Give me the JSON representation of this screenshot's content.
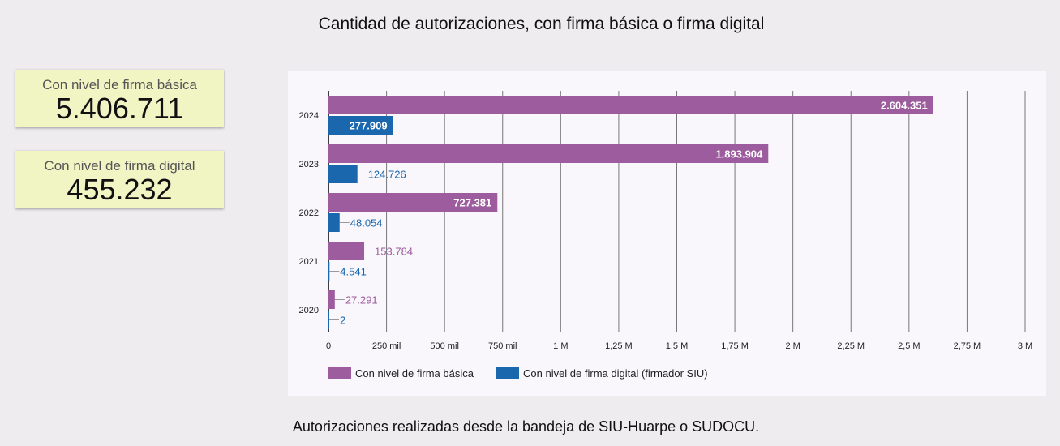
{
  "title": "Cantidad de autorizaciones, con firma básica o firma digital",
  "kpis": [
    {
      "label": "Con nivel de firma básica",
      "value": "5.406.711"
    },
    {
      "label": "Con nivel de firma digital",
      "value": "455.232"
    }
  ],
  "footer": "Autorizaciones realizadas desde la bandeja de SIU-Huarpe o SUDOCU.",
  "chart_data": {
    "type": "bar",
    "orientation": "horizontal",
    "categories": [
      "2024",
      "2023",
      "2022",
      "2021",
      "2020"
    ],
    "series": [
      {
        "name": "Con nivel de firma básica",
        "color": "#9c5c9e",
        "values": [
          2604351,
          1893904,
          727381,
          153784,
          27291
        ],
        "labels": [
          "2.604.351",
          "1.893.904",
          "727.381",
          "153.784",
          "27.291"
        ]
      },
      {
        "name": "Con nivel de firma digital (firmador SIU)",
        "color": "#1a67ad",
        "values": [
          277909,
          124726,
          48054,
          4541,
          2
        ],
        "labels": [
          "277.909",
          "124.726",
          "48.054",
          "4.541",
          "2"
        ]
      }
    ],
    "xlim": [
      0,
      3000000
    ],
    "xticks": [
      0,
      250000,
      500000,
      750000,
      1000000,
      1250000,
      1500000,
      1750000,
      2000000,
      2250000,
      2500000,
      2750000,
      3000000
    ],
    "xtick_labels": [
      "0",
      "250 mil",
      "500 mil",
      "750 mil",
      "1 M",
      "1,25 M",
      "1,5 M",
      "1,75 M",
      "2 M",
      "2,25 M",
      "2,5 M",
      "2,75 M",
      "3 M"
    ],
    "grid": true,
    "legend": "bottom-left"
  }
}
